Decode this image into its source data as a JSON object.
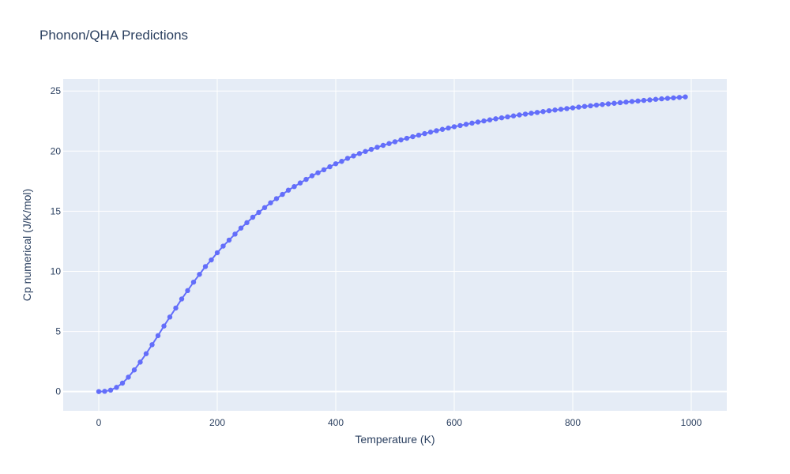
{
  "chart_data": {
    "type": "line",
    "title": "Phonon/QHA Predictions",
    "xlabel": "Temperature (K)",
    "ylabel": "Cp numerical (J/K/mol)",
    "xlim": [
      -60,
      1060
    ],
    "ylim": [
      -1.6,
      26.0
    ],
    "x_ticks": [
      0,
      200,
      400,
      600,
      800,
      1000
    ],
    "y_ticks": [
      0,
      5,
      10,
      15,
      20,
      25
    ],
    "grid": true,
    "legend": "none",
    "colors": {
      "series": "#636efa",
      "plot_bg": "#e5ecf6",
      "grid": "#ffffff",
      "text": "#2a3f5f"
    },
    "series": [
      {
        "mode": "lines+markers",
        "x": [
          0,
          10,
          20,
          30,
          40,
          50,
          60,
          70,
          80,
          90,
          100,
          110,
          120,
          130,
          140,
          150,
          160,
          170,
          180,
          190,
          200,
          210,
          220,
          230,
          240,
          250,
          260,
          270,
          280,
          290,
          300,
          310,
          320,
          330,
          340,
          350,
          360,
          370,
          380,
          390,
          400,
          410,
          420,
          430,
          440,
          450,
          460,
          470,
          480,
          490,
          500,
          510,
          520,
          530,
          540,
          550,
          560,
          570,
          580,
          590,
          600,
          610,
          620,
          630,
          640,
          650,
          660,
          670,
          680,
          690,
          700,
          710,
          720,
          730,
          740,
          750,
          760,
          770,
          780,
          790,
          800,
          810,
          820,
          830,
          840,
          850,
          860,
          870,
          880,
          890,
          900,
          910,
          920,
          930,
          940,
          950,
          960,
          970,
          980,
          990
        ],
        "y": [
          0.0,
          0.02,
          0.12,
          0.35,
          0.7,
          1.2,
          1.8,
          2.45,
          3.15,
          3.9,
          4.65,
          5.45,
          6.2,
          6.95,
          7.7,
          8.4,
          9.1,
          9.75,
          10.4,
          10.95,
          11.55,
          12.1,
          12.6,
          13.1,
          13.6,
          14.05,
          14.5,
          14.9,
          15.3,
          15.7,
          16.05,
          16.4,
          16.75,
          17.05,
          17.35,
          17.65,
          17.95,
          18.2,
          18.45,
          18.7,
          18.95,
          19.15,
          19.4,
          19.6,
          19.8,
          19.97,
          20.15,
          20.32,
          20.48,
          20.63,
          20.78,
          20.93,
          21.07,
          21.2,
          21.33,
          21.46,
          21.58,
          21.7,
          21.81,
          21.92,
          22.03,
          22.13,
          22.23,
          22.33,
          22.42,
          22.51,
          22.6,
          22.69,
          22.77,
          22.85,
          22.93,
          23.01,
          23.08,
          23.15,
          23.22,
          23.29,
          23.36,
          23.42,
          23.48,
          23.54,
          23.6,
          23.66,
          23.72,
          23.77,
          23.83,
          23.88,
          23.93,
          23.98,
          24.03,
          24.08,
          24.13,
          24.17,
          24.22,
          24.26,
          24.31,
          24.35,
          24.39,
          24.43,
          24.47,
          24.51
        ]
      }
    ]
  }
}
